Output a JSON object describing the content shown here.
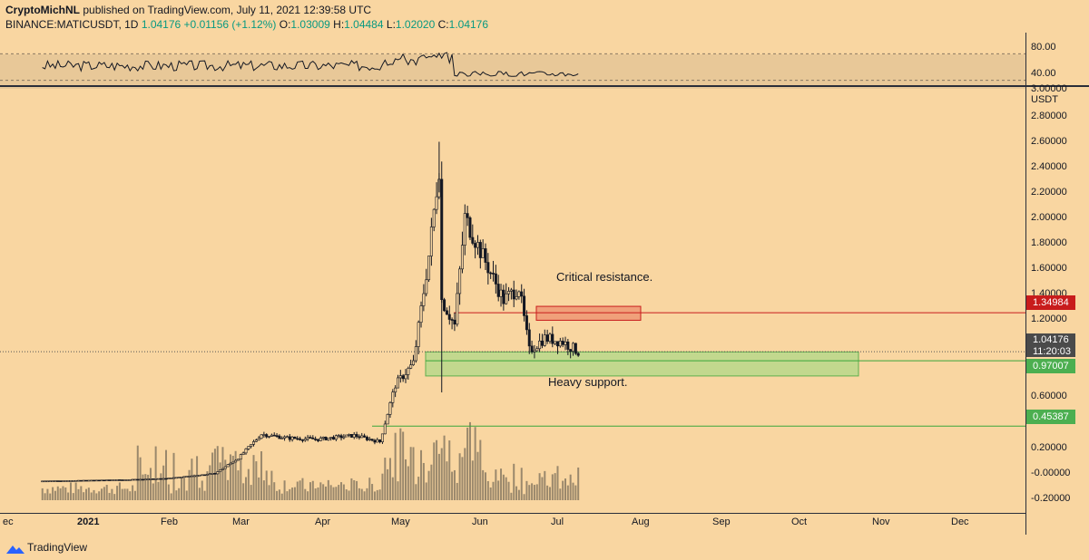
{
  "header": {
    "author": "CryptoMichNL",
    "published": "published on TradingView.com, July 11, 2021 12:39:58 UTC",
    "symbol": "BINANCE:MATICUSDT, 1D",
    "last": "1.04176",
    "change": "+0.01156 (+1.12%)",
    "o_label": "O:",
    "o": "1.03009",
    "h_label": "H:",
    "h": "1.04484",
    "l_label": "L:",
    "l": "1.02020",
    "c_label": "C:",
    "c": "1.04176"
  },
  "footer": {
    "brand": "TradingView"
  },
  "colors": {
    "background": "#f9d6a1",
    "resistance": "#c81c1c",
    "support": "#3aa63a",
    "candle": "#131722",
    "volume": "#8a7a63"
  },
  "chart_data": {
    "type": "candlestick",
    "title": "BINANCE:MATICUSDT, 1D",
    "y_unit": "USDT",
    "ylim": [
      -0.25,
      3.0
    ],
    "yticks": [
      "3.00000",
      "2.80000",
      "2.60000",
      "2.40000",
      "2.20000",
      "2.00000",
      "1.80000",
      "1.60000",
      "1.40000",
      "1.20000",
      "0.60000",
      "0.40000",
      "0.20000",
      "-0.00000",
      "-0.20000"
    ],
    "x_labels": [
      "ec",
      "2021",
      "Feb",
      "Mar",
      "Apr",
      "May",
      "Jun",
      "Jul",
      "Aug",
      "Sep",
      "Oct",
      "Nov",
      "Dec"
    ],
    "rsi": {
      "yticks": [
        "80.00",
        "40.00"
      ],
      "band": [
        30,
        70
      ]
    },
    "approx_closes": [
      {
        "date": "2020-12-15",
        "close": 0.02
      },
      {
        "date": "2021-01-15",
        "close": 0.03
      },
      {
        "date": "2021-02-01",
        "close": 0.04
      },
      {
        "date": "2021-02-20",
        "close": 0.08
      },
      {
        "date": "2021-03-01",
        "close": 0.2
      },
      {
        "date": "2021-03-10",
        "close": 0.39
      },
      {
        "date": "2021-03-20",
        "close": 0.36
      },
      {
        "date": "2021-04-01",
        "close": 0.35
      },
      {
        "date": "2021-04-15",
        "close": 0.38
      },
      {
        "date": "2021-04-25",
        "close": 0.33
      },
      {
        "date": "2021-05-01",
        "close": 0.78
      },
      {
        "date": "2021-05-08",
        "close": 0.95
      },
      {
        "date": "2021-05-14",
        "close": 1.8
      },
      {
        "date": "2021-05-18",
        "close": 2.5
      },
      {
        "date": "2021-05-19",
        "close": 1.45
      },
      {
        "date": "2021-05-24",
        "close": 1.25
      },
      {
        "date": "2021-05-28",
        "close": 2.1
      },
      {
        "date": "2021-06-05",
        "close": 1.75
      },
      {
        "date": "2021-06-12",
        "close": 1.45
      },
      {
        "date": "2021-06-18",
        "close": 1.55
      },
      {
        "date": "2021-06-22",
        "close": 1.05
      },
      {
        "date": "2021-06-28",
        "close": 1.15
      },
      {
        "date": "2021-07-05",
        "close": 1.12
      },
      {
        "date": "2021-07-11",
        "close": 1.04176
      }
    ],
    "levels": [
      {
        "name": "resistance",
        "value": "1.34984"
      },
      {
        "name": "support",
        "value": "0.97007"
      },
      {
        "name": "lower",
        "value": "0.45387"
      }
    ],
    "last_price": {
      "value": "1.04176",
      "countdown": "11:20:03"
    },
    "annotations": [
      "Critical resistance.",
      "Heavy support."
    ]
  }
}
